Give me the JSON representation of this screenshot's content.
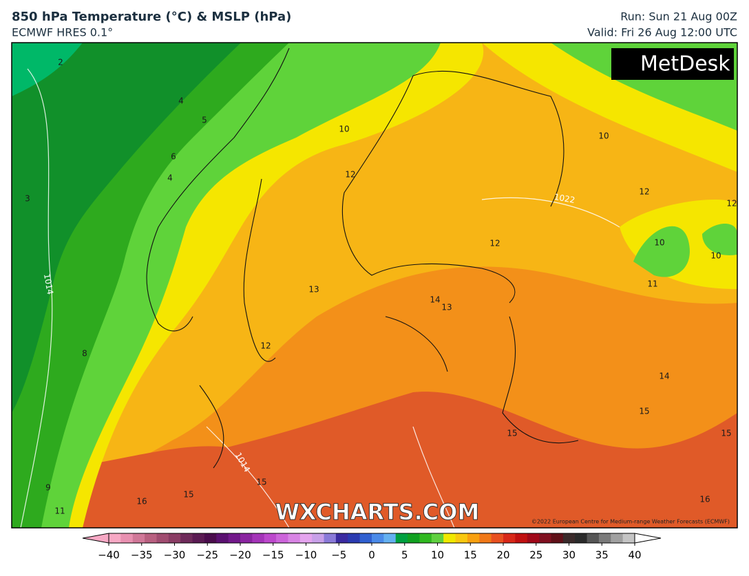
{
  "header": {
    "title": "850 hPa Temperature (°C) & MSLP (hPa)",
    "subtitle": "ECMWF HRES 0.1°",
    "run": "Run: Sun 21 Aug 00Z",
    "valid": "Valid: Fri 26 Aug 12:00 UTC"
  },
  "logo": "MetDesk",
  "watermark": "WXCHARTS.COM",
  "credit": "©2022 European Centre for Medium-range Weather Forecasts (ECMWF)",
  "temperature_labels": [
    2,
    4,
    5,
    6,
    4,
    3,
    8,
    9,
    11,
    10,
    12,
    13,
    12,
    14,
    13,
    12,
    10,
    12,
    12,
    10,
    10,
    11,
    14,
    15,
    15,
    15,
    15,
    15,
    16,
    16
  ],
  "pressure_labels": [
    1014,
    1022,
    1014
  ],
  "colorbar": {
    "ticks": [
      {
        "value": -40,
        "label": "−40"
      },
      {
        "value": -35,
        "label": "−35"
      },
      {
        "value": -30,
        "label": "−30"
      },
      {
        "value": -25,
        "label": "−25"
      },
      {
        "value": -20,
        "label": "−20"
      },
      {
        "value": -15,
        "label": "−15"
      },
      {
        "value": -10,
        "label": "−10"
      },
      {
        "value": -5,
        "label": "−5"
      },
      0,
      5,
      10,
      15,
      20,
      25,
      30,
      35,
      40
    ],
    "colors": [
      "#f7a8c4",
      "#e890b0",
      "#d07898",
      "#b86080",
      "#a04c70",
      "#8a3c64",
      "#6e2a5a",
      "#5a1a52",
      "#4a0c4c",
      "#5a1070",
      "#72188a",
      "#8a24a0",
      "#a434b8",
      "#bc48cc",
      "#cc64da",
      "#d884e4",
      "#e4a4ee",
      "#c8a0e8",
      "#8a7ad8",
      "#3a2aa0",
      "#2a3ab0",
      "#3060d0",
      "#4a8ae8",
      "#64b0f0",
      "#00a040",
      "#10a020",
      "#30b820",
      "#60d040",
      "#f0e800",
      "#f8c810",
      "#f8a010",
      "#f07818",
      "#e85020",
      "#d82818",
      "#c01010",
      "#a00818",
      "#801020",
      "#601018",
      "#3a2a2a",
      "#2a2a2a",
      "#555555",
      "#7a7a7a",
      "#a0a0a0",
      "#c4c4c4"
    ]
  }
}
